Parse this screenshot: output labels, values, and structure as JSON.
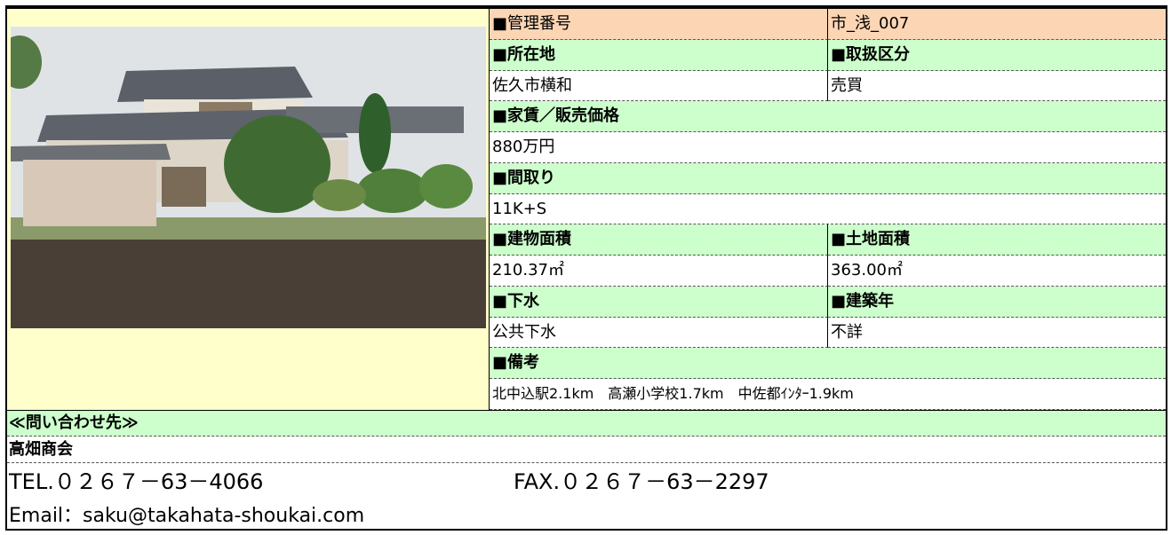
{
  "table": {
    "rows": [
      [
        "■管理番号",
        "市_浅_007"
      ],
      [
        "■所在地",
        "■取扱区分"
      ],
      [
        "佐久市横和",
        "売買"
      ],
      [
        "■家賃／販売価格"
      ],
      [
        "880万円"
      ],
      [
        "■間取り"
      ],
      [
        "11K+S"
      ],
      [
        "■建物面積",
        "■土地面積"
      ],
      [
        "210.37㎡",
        "363.00㎡"
      ],
      [
        "■下水",
        "■建築年"
      ],
      [
        "公共下水",
        "不詳"
      ],
      [
        "■備考"
      ],
      [
        "北中込駅2.1km　高瀬小学校1.7km　中佐都ｲﾝﾀｰ1.9km"
      ]
    ]
  },
  "contact": {
    "heading": "≪問い合わせ先≫",
    "company": "高畑商会",
    "tel": "TEL.０２６７－63－4066",
    "fax": "FAX.０２６７－63－2297",
    "email": "Email：saku@takahata-shoukai.com"
  }
}
